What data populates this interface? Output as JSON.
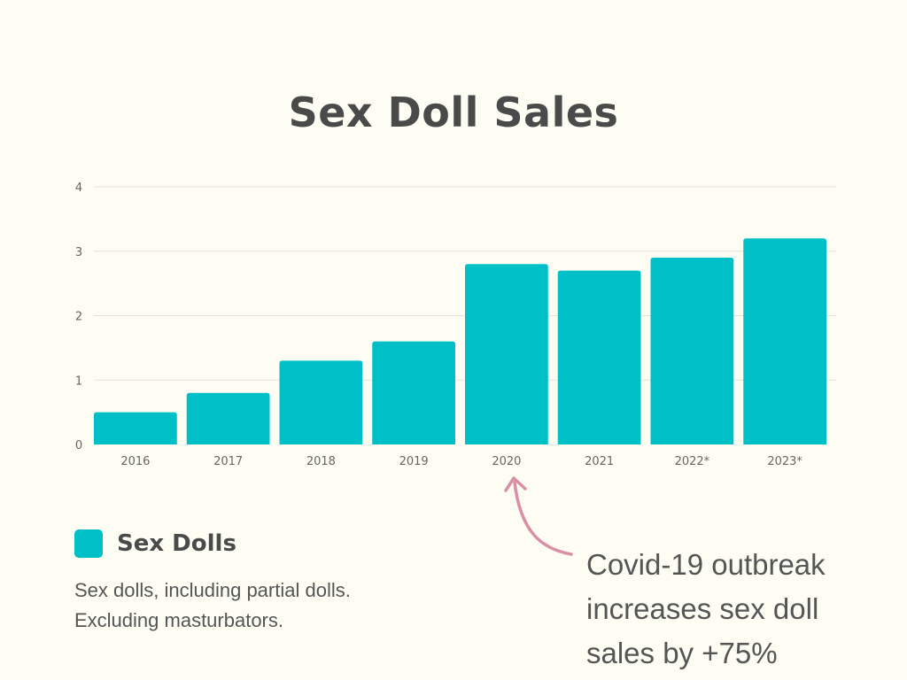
{
  "chart_data": {
    "type": "bar",
    "title": "Sex Doll Sales",
    "categories": [
      "2016",
      "2017",
      "2018",
      "2019",
      "2020",
      "2021",
      "2022*",
      "2023*"
    ],
    "values": [
      0.5,
      0.8,
      1.3,
      1.6,
      2.8,
      2.7,
      2.9,
      3.2
    ],
    "ylim": [
      0,
      4
    ],
    "yticks": [
      "0",
      "1",
      "2",
      "3",
      "4"
    ],
    "xlabel": "",
    "ylabel": "",
    "grid": true,
    "legend": [
      {
        "name": "Sex Dolls",
        "color": "#00bfc6"
      }
    ],
    "annotations": [
      {
        "target": "2020",
        "lines": [
          "Covid-19 outbreak",
          "increases sex doll",
          "sales by +75%"
        ]
      }
    ]
  },
  "colors": {
    "bar": "#00bfc6",
    "arrow": "#d98fa6",
    "grid": "#e3e3dc",
    "background": "#fdfdf4"
  },
  "legend": {
    "label": "Sex Dolls",
    "note_lines": [
      "Sex dolls, including partial dolls.",
      "Excluding masturbators."
    ]
  },
  "annotation": {
    "lines": [
      "Covid-19 outbreak",
      "increases sex doll",
      "sales by +75%"
    ]
  }
}
